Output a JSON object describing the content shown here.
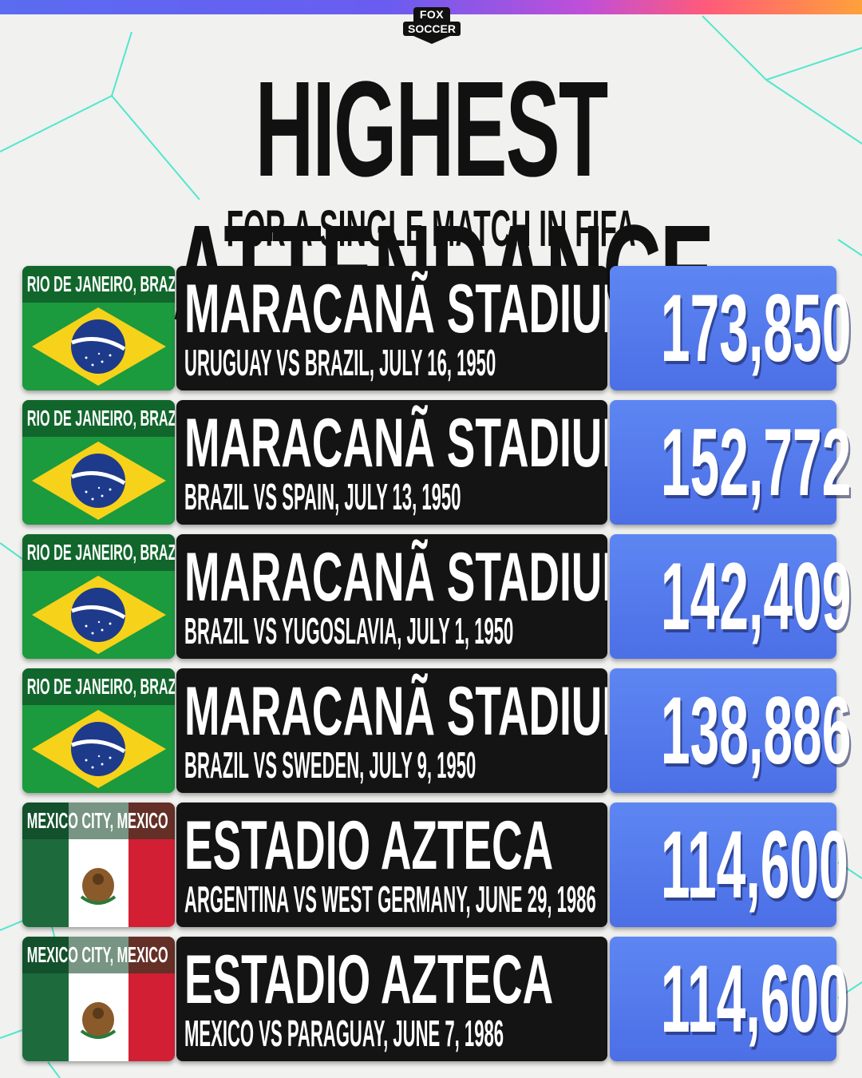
{
  "brand": {
    "line1": "FOX",
    "line2": "SOCCER"
  },
  "header": {
    "title": "HIGHEST ATTENDANCE",
    "subtitle": "FOR A SINGLE MATCH IN FIFA WORLD CUP™ HISTORY"
  },
  "colors": {
    "panel": "#141414",
    "value_box": "#5477ec",
    "accent_line": "#2fe0c4"
  },
  "rows": [
    {
      "city": "RIO DE JANEIRO, BRAZIL",
      "flag": "brazil-flag-icon",
      "stadium": "MARACANÃ STADIUM",
      "match": "URUGUAY VS BRAZIL, JULY 16, 1950",
      "attendance": "173,850"
    },
    {
      "city": "RIO DE JANEIRO, BRAZIL",
      "flag": "brazil-flag-icon",
      "stadium": "MARACANÃ STADIUM",
      "match": "BRAZIL VS SPAIN, JULY 13, 1950",
      "attendance": "152,772"
    },
    {
      "city": "RIO DE JANEIRO, BRAZIL",
      "flag": "brazil-flag-icon",
      "stadium": "MARACANÃ STADIUM",
      "match": "BRAZIL VS YUGOSLAVIA, JULY 1, 1950",
      "attendance": "142,409"
    },
    {
      "city": "RIO DE JANEIRO, BRAZIL",
      "flag": "brazil-flag-icon",
      "stadium": "MARACANÃ STADIUM",
      "match": "BRAZIL VS SWEDEN, JULY 9, 1950",
      "attendance": "138,886"
    },
    {
      "city": "MEXICO CITY, MEXICO",
      "flag": "mexico-flag-icon",
      "stadium": "ESTADIO AZTECA",
      "match": "ARGENTINA VS WEST GERMANY, JUNE 29, 1986",
      "attendance": "114,600"
    },
    {
      "city": "MEXICO CITY, MEXICO",
      "flag": "mexico-flag-icon",
      "stadium": "ESTADIO AZTECA",
      "match": "MEXICO VS PARAGUAY, JUNE 7, 1986",
      "attendance": "114,600"
    }
  ]
}
